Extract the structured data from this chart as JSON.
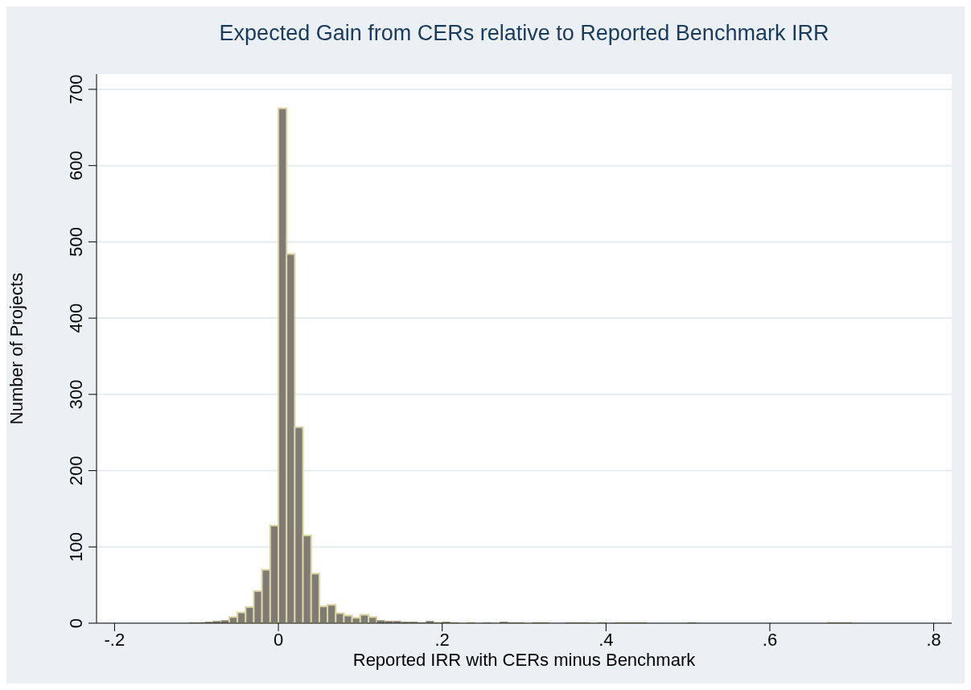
{
  "chart_data": {
    "type": "histogram",
    "title": "Expected Gain from CERs relative to Reported Benchmark IRR",
    "xlabel": "Reported IRR with CERs minus Benchmark",
    "ylabel": "Number of Projects",
    "bins": [
      -0.12,
      -0.11,
      -0.1,
      -0.09,
      -0.08,
      -0.07,
      -0.06,
      -0.05,
      -0.04,
      -0.03,
      -0.02,
      -0.01,
      0,
      0.01,
      0.02,
      0.03,
      0.04,
      0.05,
      0.06,
      0.07,
      0.08,
      0.09,
      0.1,
      0.11,
      0.12,
      0.13,
      0.14,
      0.15,
      0.16,
      0.17,
      0.18,
      0.19,
      0.2,
      0.21,
      0.22,
      0.23,
      0.24,
      0.25,
      0.26,
      0.27,
      0.28,
      0.29,
      0.3,
      0.31,
      0.32,
      0.33,
      0.34,
      0.35,
      0.36,
      0.37,
      0.38,
      0.39,
      0.4,
      0.41,
      0.42,
      0.43,
      0.44,
      0.45,
      0.46,
      0.47,
      0.48,
      0.49,
      0.5,
      0.51,
      0.52,
      0.53,
      0.54,
      0.55,
      0.56,
      0.57,
      0.58,
      0.59,
      0.6,
      0.61,
      0.62,
      0.63,
      0.64,
      0.65,
      0.66,
      0.67,
      0.68,
      0.69,
      0.7
    ],
    "values": [
      0,
      1,
      1,
      2,
      3,
      4,
      8,
      14,
      21,
      42,
      70,
      128,
      675,
      484,
      257,
      115,
      65,
      22,
      24,
      13,
      10,
      7,
      11,
      8,
      4,
      3,
      3,
      2,
      2,
      1,
      3,
      1,
      2,
      1,
      0,
      1,
      0,
      1,
      0,
      2,
      1,
      1,
      0,
      1,
      1,
      0,
      0,
      1,
      1,
      1,
      0,
      1,
      0,
      1,
      1,
      1,
      1,
      0,
      0,
      0,
      0,
      0,
      1,
      0,
      0,
      0,
      0,
      0,
      0,
      0,
      0,
      0,
      0,
      0,
      0,
      0,
      0,
      0,
      0,
      1,
      1,
      1
    ],
    "color": "#7f7b74",
    "xlim": [
      -0.222,
      0.822
    ],
    "xticks": [
      {
        "value": -0.2,
        "label": "-.2"
      },
      0,
      {
        "value": 0.2,
        "label": ".2"
      },
      {
        "value": 0.4,
        "label": ".4"
      },
      {
        "value": 0.6,
        "label": ".6"
      },
      {
        "value": 0.8,
        "label": ".8"
      }
    ],
    "ylim": [
      0,
      720
    ],
    "yticks": [
      0,
      100,
      200,
      300,
      400,
      500,
      600,
      700
    ],
    "grid": "y"
  }
}
